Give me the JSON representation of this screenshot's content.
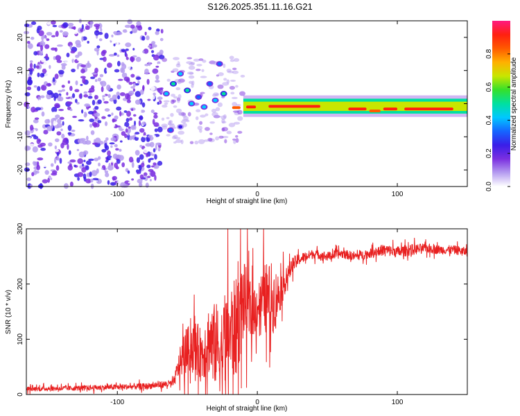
{
  "title": "S126.2025.351.11.16.G21",
  "chart_data": [
    {
      "type": "heatmap",
      "title": "S126.2025.351.11.16.G21",
      "xlabel": "Height of straight line (km)",
      "ylabel": "Frequency (Hz)",
      "xlim": [
        -165,
        150
      ],
      "ylim": [
        -25,
        25
      ],
      "xticks": [
        -100,
        0,
        100
      ],
      "yticks": [
        -20,
        -10,
        0,
        10,
        20
      ],
      "colorbar": {
        "label": "Normalized spectral amplitude",
        "range": [
          0,
          1
        ],
        "ticks": [
          "0.0",
          "0.2",
          "0.4",
          "0.6",
          "0.8"
        ],
        "colormap": [
          "#ffffff",
          "#b59cf0",
          "#7b2fe0",
          "#3a1ee8",
          "#1565ff",
          "#00c8ff",
          "#00e0a0",
          "#35e02a",
          "#c8e600",
          "#ffb000",
          "#ff5a00",
          "#ff2010",
          "#ff1a80"
        ]
      },
      "noise_region_km": [
        -165,
        -68
      ],
      "scatter_region_km": [
        -68,
        -10
      ],
      "ridge_start_km": -10,
      "ridge_freq_hz": 0,
      "ridge_segments": [
        {
          "x0": -18,
          "x1": -12,
          "f": -1.2,
          "amp": 0.85
        },
        {
          "x0": -8,
          "x1": -1,
          "f": -1.0,
          "amp": 0.95
        },
        {
          "x0": 8,
          "x1": 45,
          "f": -0.8,
          "amp": 1.0
        },
        {
          "x0": 65,
          "x1": 78,
          "f": -1.6,
          "amp": 0.95
        },
        {
          "x0": 80,
          "x1": 88,
          "f": -2.2,
          "amp": 0.9
        },
        {
          "x0": 90,
          "x1": 100,
          "f": -1.6,
          "amp": 0.95
        },
        {
          "x0": 105,
          "x1": 140,
          "f": -1.6,
          "amp": 1.0
        }
      ],
      "blobs": [
        {
          "x": -65,
          "f": 3,
          "amp": 0.45
        },
        {
          "x": -60,
          "f": 6,
          "amp": 0.5
        },
        {
          "x": -55,
          "f": 9,
          "amp": 0.45
        },
        {
          "x": -50,
          "f": 4,
          "amp": 0.55
        },
        {
          "x": -47,
          "f": 0,
          "amp": 0.45
        },
        {
          "x": -42,
          "f": 2,
          "amp": 0.4
        },
        {
          "x": -38,
          "f": -1,
          "amp": 0.45
        },
        {
          "x": -34,
          "f": 6,
          "amp": 0.4
        },
        {
          "x": -30,
          "f": 1,
          "amp": 0.45
        },
        {
          "x": -27,
          "f": 12,
          "amp": 0.4
        },
        {
          "x": -24,
          "f": 3,
          "amp": 0.5
        },
        {
          "x": -62,
          "f": -8,
          "amp": 0.35
        },
        {
          "x": -55,
          "f": -7,
          "amp": 0.3
        }
      ]
    },
    {
      "type": "line",
      "xlabel": "Height of straight line (km)",
      "ylabel": "SNR (10 * v/v)",
      "xlim": [
        -165,
        150
      ],
      "ylim": [
        0,
        300
      ],
      "xticks": [
        -100,
        0,
        100
      ],
      "yticks": [
        0,
        100,
        200,
        300
      ],
      "color": "#e82020",
      "series": [
        {
          "name": "SNR",
          "x": [
            -165,
            -120,
            -80,
            -60,
            -55,
            -50,
            -45,
            -40,
            -35,
            -30,
            -25,
            -20,
            -15,
            -10,
            -5,
            0,
            5,
            10,
            15,
            20,
            25,
            30,
            40,
            50,
            60,
            70,
            80,
            90,
            100,
            110,
            120,
            130,
            140,
            150
          ],
          "y": [
            10,
            12,
            15,
            20,
            60,
            80,
            90,
            70,
            100,
            90,
            80,
            110,
            120,
            170,
            150,
            160,
            175,
            170,
            180,
            205,
            235,
            245,
            255,
            250,
            255,
            250,
            255,
            262,
            258,
            262,
            265,
            262,
            262,
            258
          ],
          "noise": [
            6,
            7,
            8,
            10,
            40,
            60,
            70,
            70,
            90,
            110,
            120,
            130,
            130,
            110,
            80,
            60,
            90,
            100,
            60,
            30,
            20,
            15,
            12,
            12,
            12,
            12,
            12,
            15,
            15,
            15,
            12,
            12,
            12,
            12
          ]
        }
      ]
    }
  ]
}
